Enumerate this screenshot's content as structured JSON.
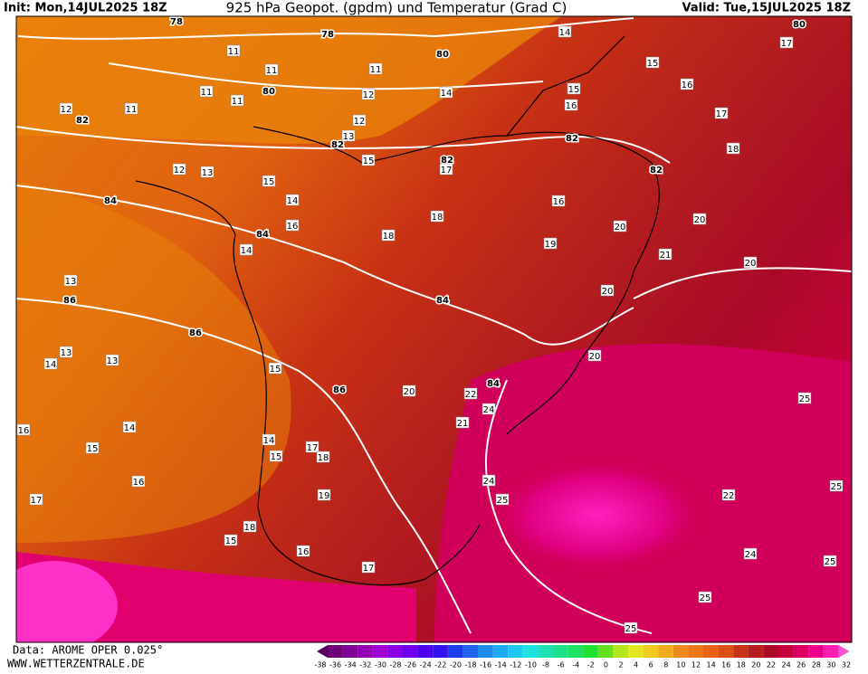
{
  "header": {
    "init": "Init: Mon,14JUL2025 18Z",
    "title": "925 hPa Geopot. (gpdm) und Temperatur (Grad C)",
    "valid": "Valid: Tue,15JUL2025 18Z"
  },
  "footer": {
    "source": "Data: AROME OPER 0.025°",
    "site": "WWW.WETTERZENTRALE.DE"
  },
  "colorbar": {
    "labels": [
      -38,
      -36,
      -34,
      -32,
      -30,
      -28,
      -26,
      -24,
      -22,
      -20,
      -18,
      -16,
      -14,
      -12,
      -10,
      -8,
      -6,
      -4,
      -2,
      0,
      2,
      4,
      6,
      8,
      10,
      12,
      14,
      16,
      18,
      20,
      22,
      24,
      26,
      28,
      30,
      32
    ],
    "colors": [
      "#5a005a",
      "#6e0078",
      "#820096",
      "#9600b4",
      "#a000d2",
      "#8c00e6",
      "#6e00f0",
      "#5000f0",
      "#3214f0",
      "#1e3cf0",
      "#1e64f0",
      "#1e8cf0",
      "#1eaaf0",
      "#1ec8f0",
      "#1ee1e1",
      "#1ee1b4",
      "#1ee18c",
      "#1ee164",
      "#1ee132",
      "#64e11e",
      "#b4e61e",
      "#e6e61e",
      "#f0c81e",
      "#f0aa1e",
      "#f08c1e",
      "#eb7814",
      "#e6640f",
      "#dc500f",
      "#c83214",
      "#b41e1e",
      "#aa0a28",
      "#c8003c",
      "#dc0064",
      "#f0008c",
      "#ff1eb4",
      "#ff50d2"
    ]
  },
  "map": {
    "geopotential_labels": [
      78,
      78,
      80,
      80,
      82,
      82,
      82,
      82,
      82,
      84,
      84,
      84,
      86,
      86,
      86,
      84,
      80
    ],
    "temperature_labels": [
      11,
      11,
      11,
      11,
      11,
      11,
      12,
      12,
      12,
      13,
      14,
      14,
      15,
      15,
      16,
      15,
      17,
      17,
      18,
      16,
      17,
      12,
      13,
      15,
      14,
      16,
      18,
      18,
      16,
      19,
      20,
      21,
      20,
      13,
      13,
      14,
      13,
      14,
      15,
      20,
      14,
      15,
      16,
      16,
      17,
      14,
      15,
      17,
      18,
      19,
      18,
      15,
      16,
      17,
      20,
      20,
      20,
      25,
      25,
      25,
      24,
      25,
      25,
      22,
      25,
      24,
      21,
      22,
      24
    ]
  }
}
